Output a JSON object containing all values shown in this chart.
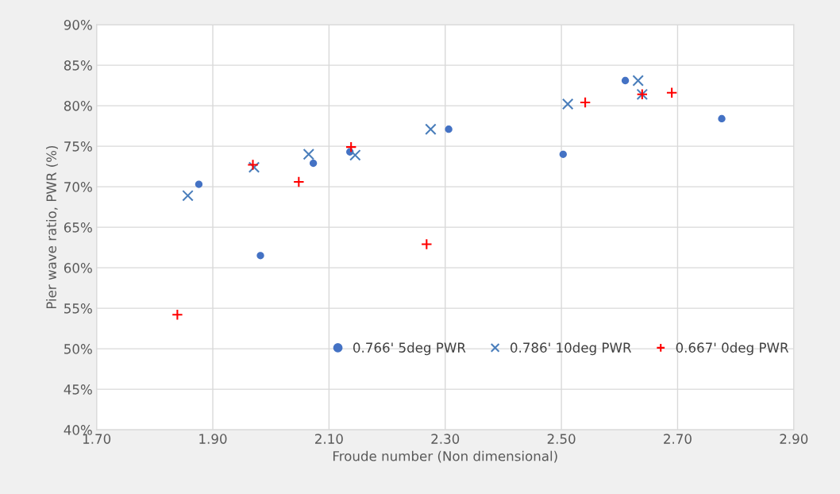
{
  "chart_data": {
    "type": "scatter",
    "xlabel": "Froude number (Non dimensional)",
    "ylabel": "Pier wave ratio, PWR (%)",
    "xlim": [
      1.7,
      2.9
    ],
    "ylim": [
      40,
      90
    ],
    "xticks": [
      {
        "value": 1.7,
        "label": "1.70"
      },
      {
        "value": 1.9,
        "label": "1.90"
      },
      {
        "value": 2.1,
        "label": "2.10"
      },
      {
        "value": 2.3,
        "label": "2.30"
      },
      {
        "value": 2.5,
        "label": "2.50"
      },
      {
        "value": 2.7,
        "label": "2.70"
      },
      {
        "value": 2.9,
        "label": "2.90"
      }
    ],
    "yticks": [
      {
        "value": 40,
        "label": "40%"
      },
      {
        "value": 45,
        "label": "45%"
      },
      {
        "value": 50,
        "label": "50%"
      },
      {
        "value": 55,
        "label": "55%"
      },
      {
        "value": 60,
        "label": "60%"
      },
      {
        "value": 65,
        "label": "65%"
      },
      {
        "value": 70,
        "label": "70%"
      },
      {
        "value": 75,
        "label": "75%"
      },
      {
        "value": 80,
        "label": "80%"
      },
      {
        "value": 85,
        "label": "85%"
      },
      {
        "value": 90,
        "label": "90%"
      }
    ],
    "grid": true,
    "legend": "bottom",
    "series": [
      {
        "name": "0.766' 5deg PWR",
        "color": "#4472c4",
        "marker": "circle",
        "x": [
          1.876,
          1.982,
          2.073,
          2.136,
          2.306,
          2.503,
          2.61,
          2.776
        ],
        "values": [
          70.3,
          61.5,
          72.9,
          74.3,
          77.1,
          74.0,
          83.1,
          78.4
        ]
      },
      {
        "name": "0.786' 10deg PWR",
        "color": "#4a7ebb",
        "marker": "cross",
        "x": [
          1.857,
          1.971,
          2.065,
          2.145,
          2.275,
          2.511,
          2.632,
          2.639
        ],
        "values": [
          68.9,
          72.4,
          74.0,
          73.9,
          77.1,
          80.2,
          83.1,
          81.4
        ]
      },
      {
        "name": "0.667' 0deg PWR",
        "color": "#ff0000",
        "marker": "plus",
        "x": [
          1.839,
          1.969,
          2.048,
          2.138,
          2.268,
          2.541,
          2.639,
          2.69
        ],
        "values": [
          54.2,
          72.7,
          70.6,
          74.9,
          62.9,
          80.4,
          81.4,
          81.6
        ]
      }
    ]
  }
}
